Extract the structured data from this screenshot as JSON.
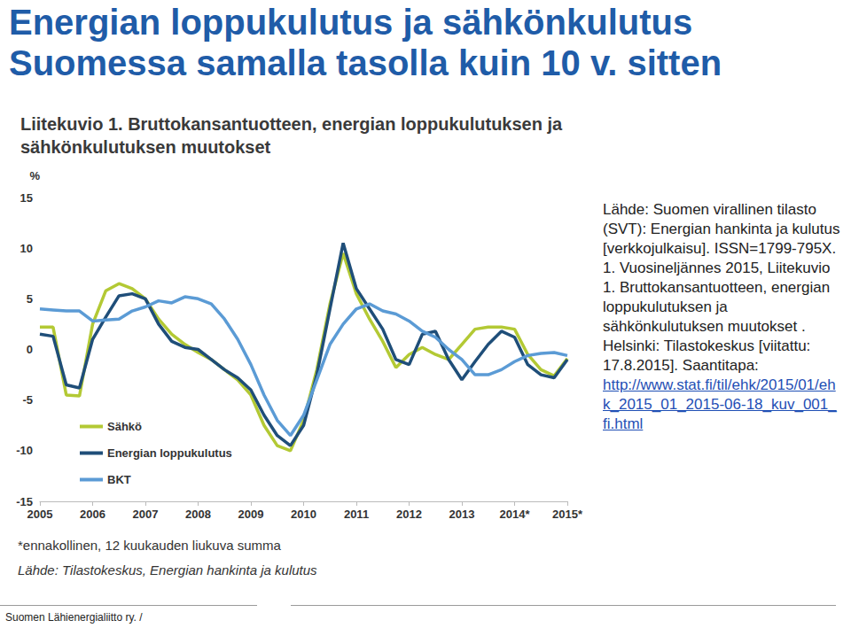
{
  "page": {
    "heading": [
      "Energian loppukulutus ja sähkönkulutus",
      "Suomessa samalla tasolla kuin 10 v. sitten"
    ],
    "source_text": "Lähde: Suomen virallinen tilasto (SVT): Energian hankinta ja kulutus [verkkojulkaisu]. ISSN=1799-795X. 1. Vuosineljännes 2015, Liitekuvio 1. Bruttokansantuotteen, energian loppukulutuksen ja sähkönkulutuksen muutokset . Helsinki: Tilastokeskus [viitattu: 17.8.2015]. Saantitapa:",
    "source_link": "http://www.stat.fi/til/ehk/2015/01/ehk_2015_01_2015-06-18_kuv_001_fi.html",
    "footer": "Suomen Lähienergialiitto ry. /"
  },
  "chart_data": {
    "type": "line",
    "title": "Liitekuvio 1. Bruttokansantuotteen, energian loppukulutuksen ja sähkönkulutuksen muutokset",
    "y_label": "%",
    "notes": [
      "*ennakollinen, 12 kuukauden liukuva summa",
      "Lähde: Tilastokeskus, Energian hankinta ja kulutus"
    ],
    "categories": [
      "2005",
      null,
      null,
      null,
      "2006",
      null,
      null,
      null,
      "2007",
      null,
      null,
      null,
      "2008",
      null,
      null,
      null,
      "2009",
      null,
      null,
      null,
      "2010",
      null,
      null,
      null,
      "2011",
      null,
      null,
      null,
      "2012",
      null,
      null,
      null,
      "2013",
      null,
      null,
      null,
      "2014*",
      null,
      null,
      null,
      "2015*"
    ],
    "series": [
      {
        "name": "Sähkö",
        "color": "#b3c934",
        "values": [
          2.2,
          2.2,
          -4.5,
          -4.6,
          2.5,
          5.8,
          6.5,
          6.0,
          5.0,
          3.0,
          1.5,
          0.5,
          -0.3,
          -1.0,
          -2.0,
          -3.0,
          -4.5,
          -7.5,
          -9.5,
          -10.0,
          -7.0,
          -2.0,
          4.5,
          9.5,
          5.5,
          3.0,
          0.8,
          -1.8,
          -0.5,
          0.2,
          -0.5,
          -1.0,
          0.5,
          2.0,
          2.2,
          2.2,
          2.0,
          -0.5,
          -2.0,
          -2.6,
          -0.9
        ]
      },
      {
        "name": "Energian loppukulutus",
        "color": "#1f4e79",
        "values": [
          1.5,
          1.3,
          -3.5,
          -3.8,
          1.0,
          3.2,
          5.3,
          5.5,
          5.0,
          2.5,
          0.8,
          0.2,
          0.0,
          -1.0,
          -2.0,
          -2.8,
          -4.0,
          -6.5,
          -8.5,
          -9.5,
          -7.5,
          -2.5,
          4.0,
          10.5,
          6.0,
          4.0,
          2.0,
          -1.0,
          -1.5,
          1.5,
          1.8,
          -1.0,
          -3.0,
          -1.2,
          0.5,
          1.8,
          1.2,
          -1.5,
          -2.5,
          -2.8,
          -1.0
        ]
      },
      {
        "name": "BKT",
        "color": "#5b9bd5",
        "values": [
          4.0,
          3.9,
          3.8,
          3.8,
          2.8,
          2.9,
          3.0,
          3.8,
          4.2,
          4.8,
          4.6,
          5.2,
          5.0,
          4.5,
          3.0,
          1.0,
          -1.5,
          -4.5,
          -7.0,
          -8.5,
          -6.5,
          -3.0,
          0.5,
          2.5,
          4.0,
          4.5,
          3.8,
          3.5,
          2.8,
          1.8,
          1.2,
          0.0,
          -1.0,
          -2.5,
          -2.5,
          -2.0,
          -1.2,
          -0.6,
          -0.4,
          -0.3,
          -0.6
        ]
      }
    ],
    "ylim": [
      -15,
      15
    ],
    "yticks": [
      -15,
      -10,
      -5,
      0,
      5,
      10,
      15
    ],
    "grid": false,
    "legend": "lower left"
  }
}
